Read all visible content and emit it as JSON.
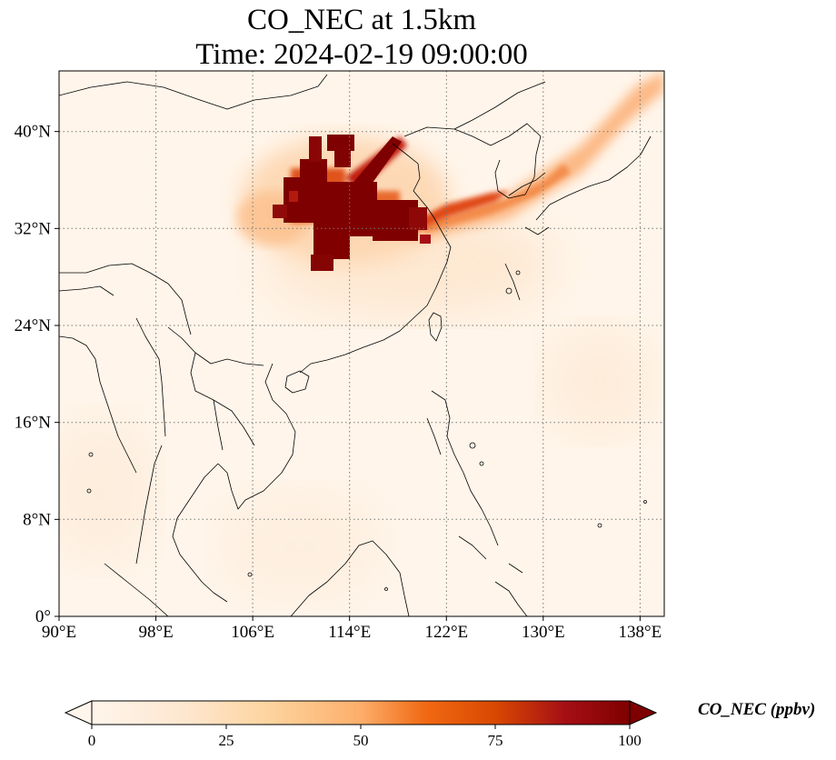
{
  "title": "CO_NEC at 1.5km",
  "subtitle": "Time: 2024-02-19 09:00:00",
  "map": {
    "lon_range": [
      90,
      140
    ],
    "lat_range": [
      0,
      45
    ],
    "x_ticks": [
      {
        "value": 90,
        "label": "90°E"
      },
      {
        "value": 98,
        "label": "98°E"
      },
      {
        "value": 106,
        "label": "106°E"
      },
      {
        "value": 114,
        "label": "114°E"
      },
      {
        "value": 122,
        "label": "122°E"
      },
      {
        "value": 130,
        "label": "130°E"
      },
      {
        "value": 138,
        "label": "138°E"
      }
    ],
    "y_ticks": [
      {
        "value": 0,
        "label": "0°"
      },
      {
        "value": 8,
        "label": "8°N"
      },
      {
        "value": 16,
        "label": "16°N"
      },
      {
        "value": 24,
        "label": "24°N"
      },
      {
        "value": 32,
        "label": "32°N"
      },
      {
        "value": 40,
        "label": "40°N"
      }
    ],
    "gridlines": true
  },
  "colorbar": {
    "label": "CO_NEC (ppbv)",
    "min": 0,
    "max": 100,
    "extend": "both",
    "ticks": [
      {
        "value": 0,
        "label": "0"
      },
      {
        "value": 25,
        "label": "25"
      },
      {
        "value": 50,
        "label": "50"
      },
      {
        "value": 75,
        "label": "75"
      },
      {
        "value": 100,
        "label": "100"
      }
    ],
    "colors": [
      "#fff5eb",
      "#fdd49e",
      "#fdae6b",
      "#f16913",
      "#d94801",
      "#a50f15",
      "#7f0000"
    ]
  }
}
